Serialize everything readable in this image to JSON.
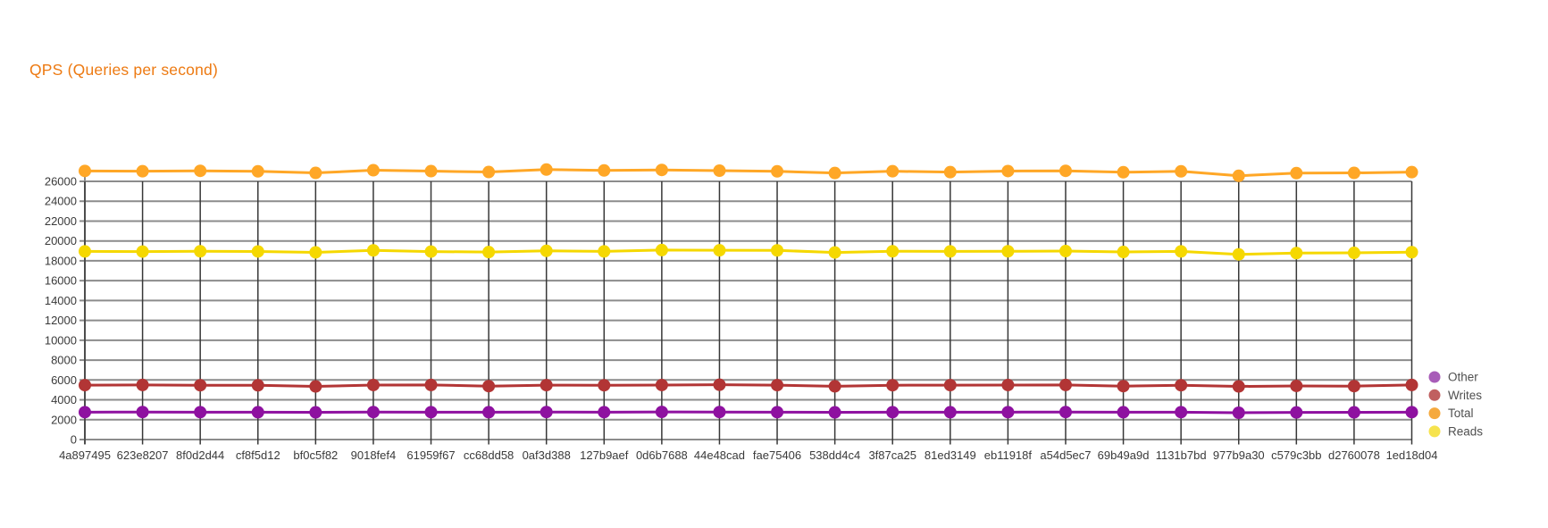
{
  "chart": {
    "title_color": "#ED7A12"
  },
  "chart_data": {
    "type": "line",
    "title": "QPS (Queries per second)",
    "xlabel": "",
    "ylabel": "",
    "categories": [
      "4a897495",
      "623e8207",
      "8f0d2d44",
      "cf8f5d12",
      "bf0c5f82",
      "9018fef4",
      "61959f67",
      "cc68dd58",
      "0af3d388",
      "127b9aef",
      "0d6b7688",
      "44e48cad",
      "fae75406",
      "538dd4c4",
      "3f87ca25",
      "81ed3149",
      "eb11918f",
      "a54d5ec7",
      "69b49a9d",
      "1131b7bd",
      "977b9a30",
      "c579c3bb",
      "d2760078",
      "1ed18d04"
    ],
    "series": [
      {
        "name": "Total",
        "color": "#FFA726",
        "legend_color": "#F5A93E",
        "values": [
          27050,
          27020,
          27060,
          27010,
          26850,
          27120,
          27030,
          26940,
          27190,
          27100,
          27150,
          27080,
          27010,
          26840,
          27020,
          26930,
          27040,
          27060,
          26920,
          27010,
          26560,
          26830,
          26850,
          26930
        ]
      },
      {
        "name": "Reads",
        "color": "#F5D800",
        "legend_color": "#F6E34E",
        "values": [
          18950,
          18930,
          18960,
          18940,
          18850,
          19050,
          18930,
          18880,
          19000,
          18950,
          19080,
          19060,
          19050,
          18840,
          18960,
          18950,
          18960,
          18980,
          18890,
          18950,
          18650,
          18780,
          18800,
          18870
        ]
      },
      {
        "name": "Writes",
        "color": "#B23535",
        "legend_color": "#C06060",
        "values": [
          5480,
          5500,
          5470,
          5460,
          5350,
          5490,
          5500,
          5380,
          5480,
          5470,
          5490,
          5520,
          5480,
          5360,
          5470,
          5480,
          5490,
          5500,
          5380,
          5470,
          5350,
          5400,
          5380,
          5500
        ]
      },
      {
        "name": "Other",
        "color": "#8E11A0",
        "legend_color": "#A85CB8",
        "values": [
          2760,
          2770,
          2760,
          2750,
          2740,
          2770,
          2760,
          2750,
          2770,
          2760,
          2780,
          2770,
          2760,
          2740,
          2760,
          2750,
          2760,
          2770,
          2750,
          2760,
          2700,
          2730,
          2740,
          2760
        ]
      }
    ],
    "legend_order": [
      "Other",
      "Writes",
      "Total",
      "Reads"
    ],
    "legend_position": "right",
    "yaxis": {
      "min": 0,
      "max": 26000,
      "step": 2000,
      "tick_labels": [
        "0",
        "2000",
        "4000",
        "6000",
        "8000",
        "10000",
        "12000",
        "14000",
        "16000",
        "18000",
        "20000",
        "22000",
        "24000",
        "26000"
      ]
    },
    "ylim": [
      0,
      28000
    ],
    "grid": true,
    "theme": {
      "background": "#FFFFFF",
      "h_grid_color": "#8C8C8C",
      "v_grid_color": "#383838",
      "axis_text_color": "#3A3A3A",
      "legend_text_color": "#4F4F4F"
    }
  }
}
